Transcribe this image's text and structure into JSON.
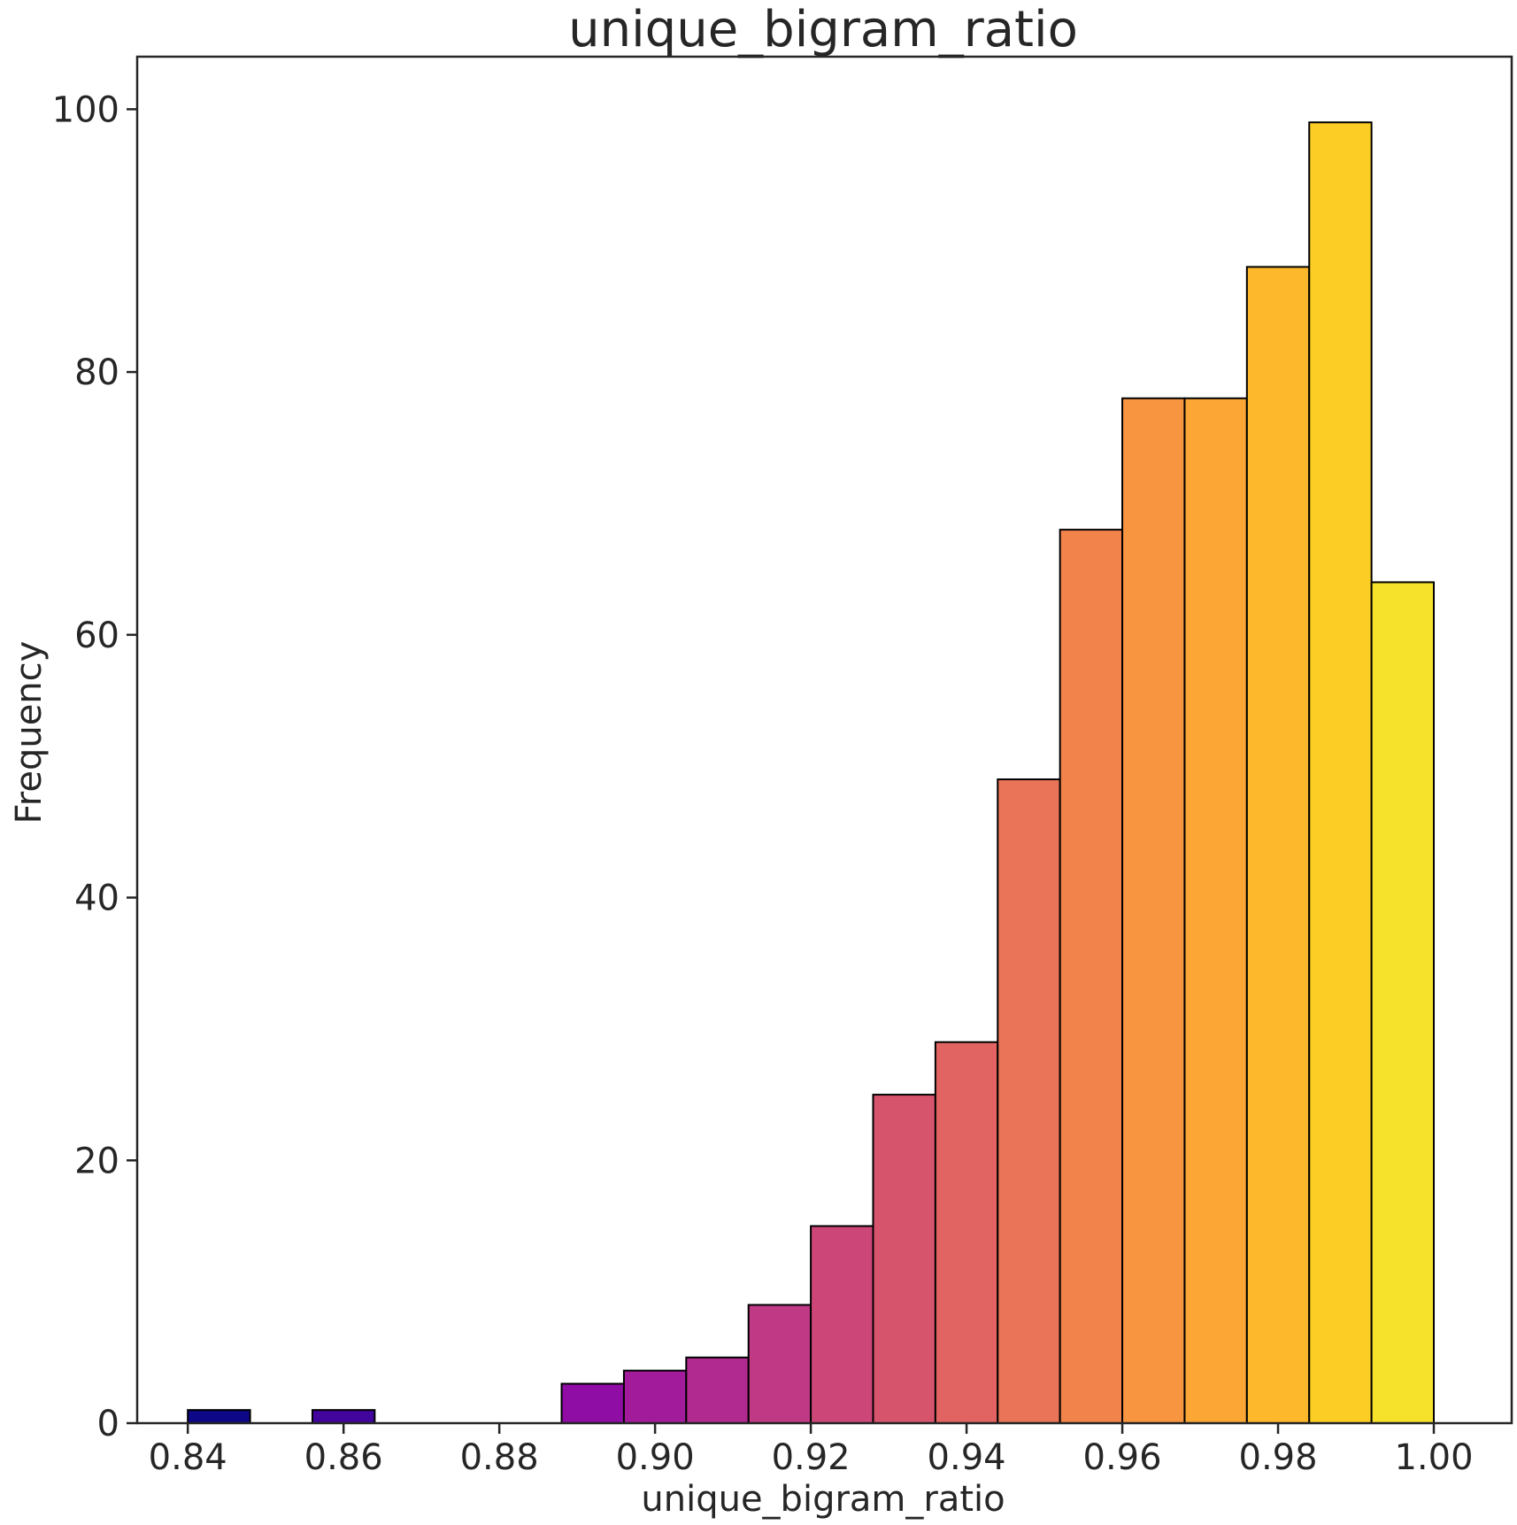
{
  "chart_data": {
    "type": "bar",
    "title": "unique_bigram_ratio",
    "xlabel": "unique_bigram_ratio",
    "ylabel": "Frequency",
    "bin_edges": [
      0.84,
      0.848,
      0.856,
      0.864,
      0.872,
      0.88,
      0.888,
      0.896,
      0.904,
      0.912,
      0.92,
      0.928,
      0.936,
      0.944,
      0.952,
      0.96,
      0.968,
      0.976,
      0.984,
      0.992,
      1.0
    ],
    "values": [
      1,
      0,
      1,
      0,
      0,
      0,
      3,
      4,
      5,
      9,
      15,
      25,
      29,
      49,
      68,
      78,
      78,
      88,
      99,
      64
    ],
    "colors": [
      "#0d0887",
      "#2a0593",
      "#41049d",
      "#5601a4",
      "#6a00a8",
      "#7e03a8",
      "#8f0da4",
      "#a11b9b",
      "#b12a90",
      "#bf3984",
      "#cc4778",
      "#d6556d",
      "#e16462",
      "#ea7457",
      "#f2844b",
      "#f89540",
      "#fca636",
      "#fdb82b",
      "#fccd25",
      "#f6e22b",
      "#f0f921"
    ],
    "xlim": [
      0.8335,
      1.01
    ],
    "ylim": [
      0,
      104
    ],
    "xticks": [
      "0.84",
      "0.86",
      "0.88",
      "0.90",
      "0.92",
      "0.94",
      "0.96",
      "0.98",
      "1.00"
    ],
    "xtick_values": [
      0.84,
      0.86,
      0.88,
      0.9,
      0.92,
      0.94,
      0.96,
      0.98,
      1.0
    ],
    "yticks": [
      "0",
      "20",
      "40",
      "60",
      "80",
      "100"
    ],
    "ytick_values": [
      0,
      20,
      40,
      60,
      80,
      100
    ],
    "grid": false,
    "edge_color": "#000000"
  }
}
